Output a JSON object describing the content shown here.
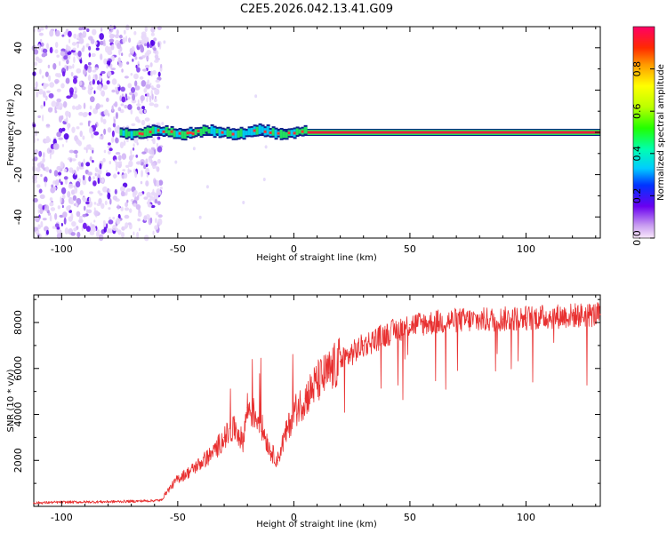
{
  "figure": {
    "title": "C2E5.2026.042.13.41.G09"
  },
  "chart_data": [
    {
      "type": "heatmap",
      "name": "spectrogram",
      "title": "C2E5.2026.042.13.41.G09",
      "xlabel": "Height of straight line (km)",
      "ylabel": "Frequency (Hz)",
      "xlim": [
        -112,
        132
      ],
      "ylim": [
        -50,
        50
      ],
      "xticks": [
        -100,
        -50,
        0,
        50,
        100
      ],
      "yticks": [
        -40,
        -20,
        0,
        20,
        40
      ],
      "colorbar": {
        "label": "Normalized spectral amplitude",
        "range": [
          0,
          1
        ],
        "ticks": [
          0.0,
          0.2,
          0.4,
          0.6,
          0.8
        ]
      },
      "features": {
        "noise_region_km": [
          -112,
          -57
        ],
        "tone_start_km": -75,
        "tone_frequency_hz": 0,
        "tone_wobble_region_km": [
          -75,
          5
        ],
        "stable_tone_region_km": [
          5,
          132
        ]
      }
    },
    {
      "type": "line",
      "name": "snr",
      "xlabel": "Height of straight line (km)",
      "ylabel": "SNR (10 * v/v)",
      "xlim": [
        -112,
        132
      ],
      "ylim": [
        0,
        9200
      ],
      "xticks": [
        -100,
        -50,
        0,
        50,
        100
      ],
      "yticks": [
        2000,
        4000,
        6000,
        8000
      ],
      "color": "#e83030",
      "x": [
        -112,
        -100,
        -90,
        -80,
        -70,
        -60,
        -57,
        -55,
        -50,
        -45,
        -40,
        -35,
        -30,
        -25,
        -22,
        -20,
        -15,
        -10,
        -7,
        -5,
        0,
        5,
        10,
        15,
        20,
        30,
        40,
        50,
        60,
        70,
        80,
        90,
        100,
        110,
        120,
        132
      ],
      "values": [
        150,
        180,
        190,
        200,
        220,
        250,
        270,
        600,
        1200,
        1500,
        1900,
        2300,
        3000,
        3400,
        2800,
        4300,
        3800,
        2400,
        2000,
        2700,
        4100,
        4700,
        5400,
        5800,
        6300,
        7000,
        7500,
        7900,
        8000,
        8100,
        8100,
        8150,
        8200,
        8250,
        8300,
        8350
      ]
    }
  ]
}
